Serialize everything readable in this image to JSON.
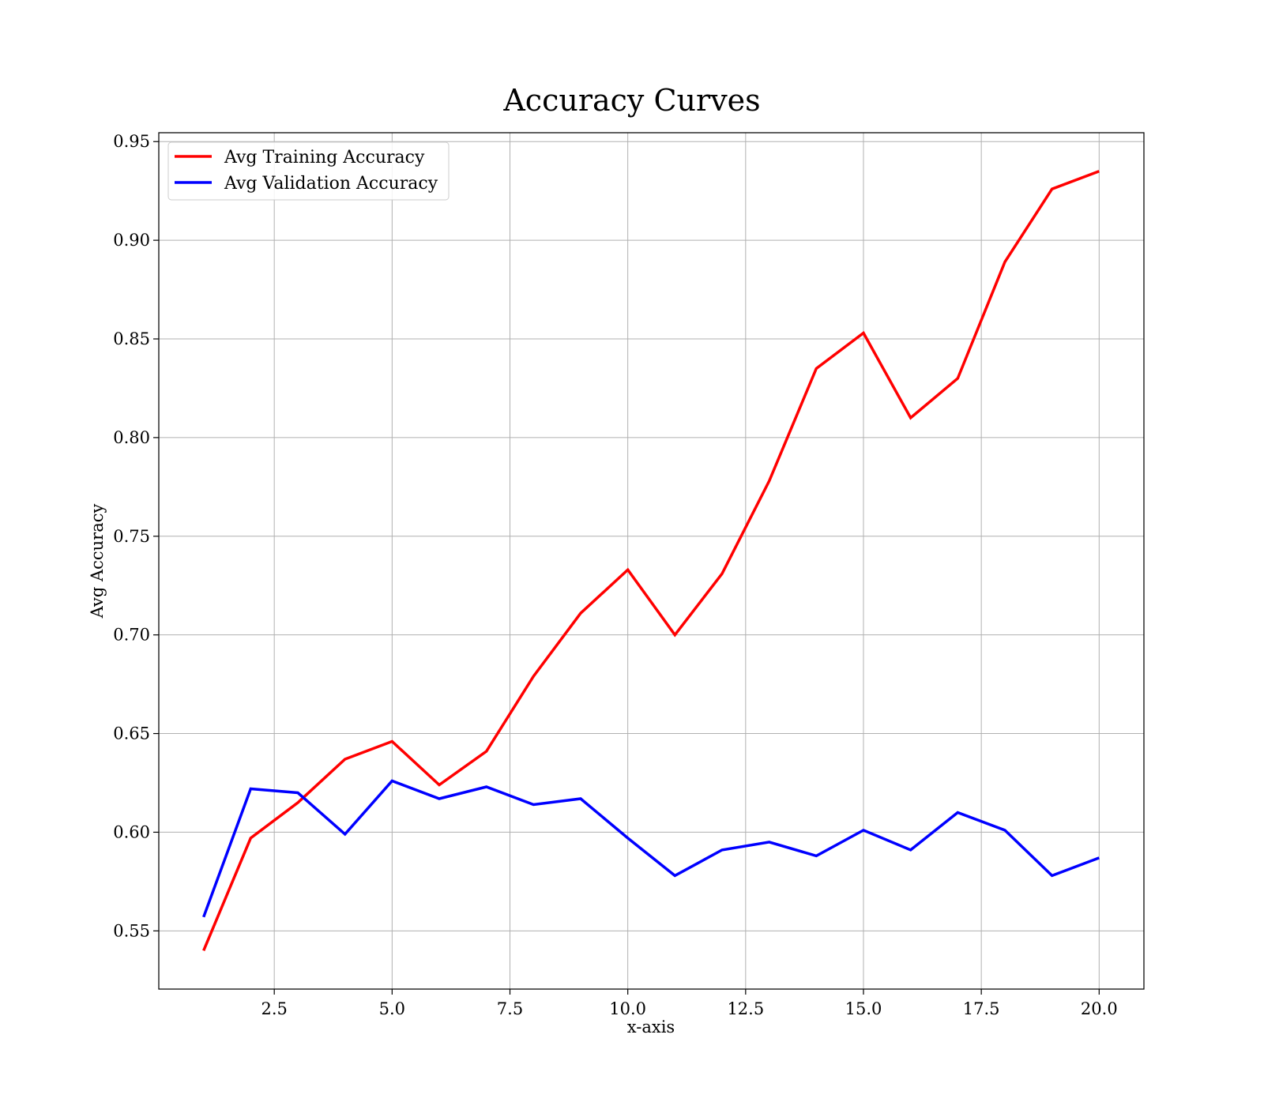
{
  "chart_data": {
    "type": "line",
    "title": "Accuracy Curves",
    "xlabel": "x-axis",
    "ylabel": "Avg Accuracy",
    "xlim": [
      0.05,
      20.95
    ],
    "ylim": [
      0.5205,
      0.9545
    ],
    "x_ticks": [
      2.5,
      5.0,
      7.5,
      10.0,
      12.5,
      15.0,
      17.5,
      20.0
    ],
    "x_tick_labels": [
      "2.5",
      "5.0",
      "7.5",
      "10.0",
      "12.5",
      "15.0",
      "17.5",
      "20.0"
    ],
    "y_ticks": [
      0.55,
      0.6,
      0.65,
      0.7,
      0.75,
      0.8,
      0.85,
      0.9,
      0.95
    ],
    "y_tick_labels": [
      "0.55",
      "0.60",
      "0.65",
      "0.70",
      "0.75",
      "0.80",
      "0.85",
      "0.90",
      "0.95"
    ],
    "grid": true,
    "legend_position": "top-left",
    "x": [
      1,
      2,
      3,
      4,
      5,
      6,
      7,
      8,
      9,
      10,
      11,
      12,
      13,
      14,
      15,
      16,
      17,
      18,
      19,
      20
    ],
    "series": [
      {
        "name": "Avg Training Accuracy",
        "color": "#ff0000",
        "values": [
          0.54,
          0.597,
          0.615,
          0.637,
          0.646,
          0.624,
          0.641,
          0.679,
          0.711,
          0.733,
          0.7,
          0.731,
          0.778,
          0.835,
          0.853,
          0.81,
          0.83,
          0.889,
          0.926,
          0.935
        ]
      },
      {
        "name": "Avg Validation Accuracy",
        "color": "#0000ff",
        "values": [
          0.557,
          0.622,
          0.62,
          0.599,
          0.626,
          0.617,
          0.623,
          0.614,
          0.617,
          0.597,
          0.578,
          0.591,
          0.595,
          0.588,
          0.601,
          0.591,
          0.61,
          0.601,
          0.578,
          0.587
        ]
      }
    ]
  }
}
